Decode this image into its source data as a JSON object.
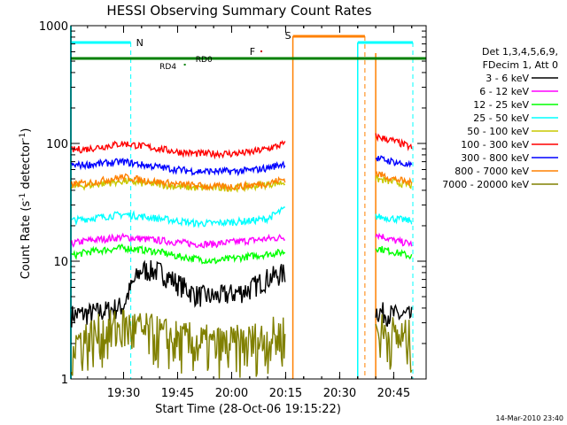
{
  "chart_data": {
    "type": "line",
    "title": "HESSI Observing Summary Count Rates",
    "xlabel": "Start Time (28-Oct-06 19:15:22)",
    "ylabel": "Count Rate (s",
    "ylabel_sup1": "-1",
    "ylabel_mid": " detector",
    "ylabel_sup2": "-1",
    "ylabel_end": ")",
    "y_scale": "log",
    "ylim": [
      1,
      1000
    ],
    "xlim": [
      "19:15:22",
      "20:54"
    ],
    "x_ticks": [
      "19:30",
      "19:45",
      "20:00",
      "20:15",
      "20:30",
      "20:45"
    ],
    "y_ticks": [
      "1",
      "10",
      "100",
      "1000"
    ],
    "footer_date": "14-Mar-2010 23:40",
    "legend_header": [
      "Det 1,3,4,5,6,9,",
      "FDecim 1, Att 0"
    ],
    "x_times": [
      "19:15",
      "19:20",
      "19:25",
      "19:30",
      "19:35",
      "19:40",
      "19:45",
      "19:50",
      "19:55",
      "20:00",
      "20:05",
      "20:10",
      "20:15",
      "20:40",
      "20:45",
      "20:50"
    ],
    "series": [
      {
        "name": "3 - 6 keV",
        "color": "#000000",
        "values": [
          3.5,
          3.6,
          3.8,
          4.2,
          8.5,
          8.2,
          6.5,
          5.2,
          5.0,
          5.3,
          5.8,
          7.2,
          8.0,
          3.8,
          3.5,
          3.4
        ]
      },
      {
        "name": "6 - 12 keV",
        "color": "#ff00ff",
        "values": [
          14,
          15,
          15.5,
          16,
          15.5,
          15,
          14.5,
          14,
          14,
          14.5,
          15,
          15.5,
          16,
          17,
          15,
          14
        ]
      },
      {
        "name": "12 - 25 keV",
        "color": "#00ff00",
        "values": [
          11,
          12,
          12.5,
          13,
          12.5,
          12,
          11,
          10.5,
          10,
          10.5,
          11,
          11.5,
          12,
          13,
          12,
          11
        ]
      },
      {
        "name": "25 - 50 keV",
        "color": "#00ffff",
        "values": [
          22,
          23,
          24,
          25,
          24,
          23,
          22,
          21,
          21,
          21.5,
          22,
          23,
          28,
          24,
          23,
          22
        ]
      },
      {
        "name": "50 - 100 keV",
        "color": "#c8c800",
        "values": [
          43,
          44,
          46,
          48,
          46,
          45,
          43,
          42,
          42,
          42,
          43,
          45,
          47,
          50,
          47,
          44
        ]
      },
      {
        "name": "100 - 300 keV",
        "color": "#ff0000",
        "values": [
          88,
          90,
          95,
          100,
          95,
          90,
          85,
          82,
          82,
          82,
          84,
          90,
          100,
          115,
          105,
          92
        ]
      },
      {
        "name": "300 - 800 keV",
        "color": "#0000ff",
        "values": [
          65,
          66,
          68,
          70,
          66,
          63,
          60,
          58,
          58,
          58,
          59,
          62,
          68,
          75,
          70,
          64
        ]
      },
      {
        "name": "800 - 7000 keV",
        "color": "#ff8000",
        "values": [
          45,
          46,
          49,
          52,
          49,
          47,
          45,
          44,
          43,
          43,
          44,
          46,
          50,
          56,
          50,
          46
        ]
      },
      {
        "name": "7000 - 20000 keV",
        "color": "#808000",
        "values": [
          2,
          2.2,
          2.5,
          2.8,
          2.5,
          2.3,
          2.1,
          2,
          1.9,
          1.9,
          2,
          2.2,
          2.4,
          2.6,
          2.3,
          2.1
        ]
      }
    ],
    "annotations": [
      {
        "label": "N",
        "color": "#00ffff"
      },
      {
        "label": "S",
        "color": "#ff8000"
      },
      {
        "label": "F",
        "color": "#cc0000"
      },
      {
        "label": "RD0",
        "color": "#008000"
      },
      {
        "label": "RD4",
        "color": "#008000"
      }
    ]
  }
}
